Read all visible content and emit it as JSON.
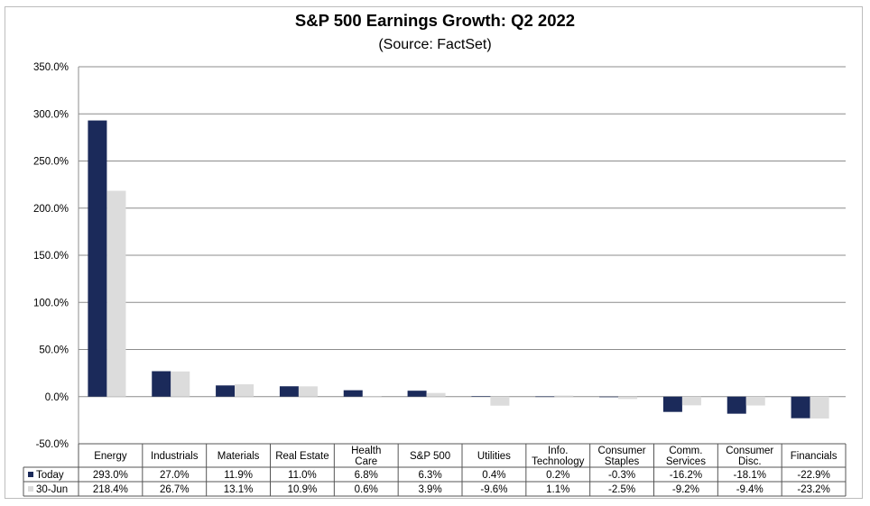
{
  "chart_data": {
    "type": "bar",
    "title": "S&P 500 Earnings Growth: Q2 2022",
    "subtitle": "(Source: FactSet)",
    "ylim": [
      -50,
      350
    ],
    "ytick_labels": [
      "350.0%",
      "300.0%",
      "250.0%",
      "200.0%",
      "150.0%",
      "100.0%",
      "50.0%",
      "0.0%",
      "-50.0%"
    ],
    "ytick_values": [
      350,
      300,
      250,
      200,
      150,
      100,
      50,
      0,
      -50
    ],
    "grid": true,
    "legend": "data-table",
    "categories": [
      [
        "Energy"
      ],
      [
        "Industrials"
      ],
      [
        "Materials"
      ],
      [
        "Real Estate"
      ],
      [
        "Health",
        "Care"
      ],
      [
        "S&P 500"
      ],
      [
        "Utilities"
      ],
      [
        "Info.",
        "Technology"
      ],
      [
        "Consumer",
        "Staples"
      ],
      [
        "Comm.",
        "Services"
      ],
      [
        "Consumer",
        "Disc."
      ],
      [
        "Financials"
      ]
    ],
    "series": [
      {
        "name": "Today",
        "color": "#1b2a5a",
        "values": [
          293.0,
          27.0,
          11.9,
          11.0,
          6.8,
          6.3,
          0.4,
          0.2,
          -0.3,
          -16.2,
          -18.1,
          -22.9
        ],
        "labels": [
          "293.0%",
          "27.0%",
          "11.9%",
          "11.0%",
          "6.8%",
          "6.3%",
          "0.4%",
          "0.2%",
          "-0.3%",
          "-16.2%",
          "-18.1%",
          "-22.9%"
        ]
      },
      {
        "name": "30-Jun",
        "color": "#dcdcdc",
        "values": [
          218.4,
          26.7,
          13.1,
          10.9,
          0.6,
          3.9,
          -9.6,
          1.1,
          -2.5,
          -9.2,
          -9.4,
          -23.2
        ],
        "labels": [
          "218.4%",
          "26.7%",
          "13.1%",
          "10.9%",
          "0.6%",
          "3.9%",
          "-9.6%",
          "1.1%",
          "-2.5%",
          "-9.2%",
          "-9.4%",
          "-23.2%"
        ]
      }
    ]
  }
}
